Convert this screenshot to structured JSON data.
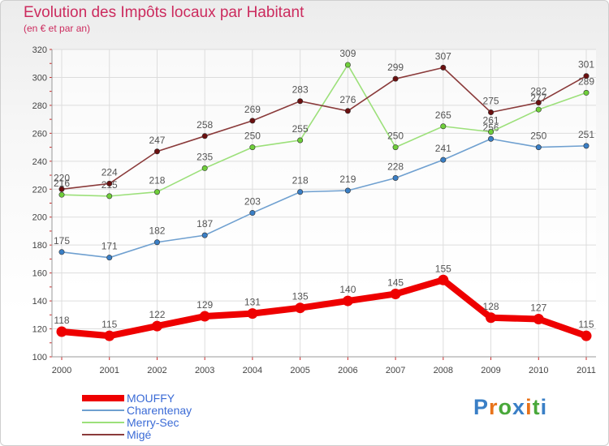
{
  "chart_data": {
    "type": "line",
    "title": "Evolution des Impôts locaux par Habitant",
    "subtitle": "(en € et par an)",
    "categories": [
      "2000",
      "2001",
      "2002",
      "2003",
      "2004",
      "2005",
      "2006",
      "2007",
      "2008",
      "2009",
      "2010",
      "2011"
    ],
    "ylim": [
      100,
      320
    ],
    "yticks": [
      100,
      120,
      140,
      160,
      180,
      200,
      220,
      240,
      260,
      280,
      300,
      320
    ],
    "grid": true,
    "legend_position": "bottom-left",
    "series": [
      {
        "name": "MOUFFY",
        "color": "#ee0000",
        "marker": "#ee0000",
        "values": [
          118,
          115,
          122,
          129,
          131,
          135,
          140,
          145,
          155,
          128,
          127,
          115
        ]
      },
      {
        "name": "Charentenay",
        "color": "#6fa0d0",
        "marker": "#3a7fc6",
        "values": [
          175,
          171,
          182,
          187,
          203,
          218,
          219,
          228,
          241,
          256,
          250,
          251
        ]
      },
      {
        "name": "Merry-Sec",
        "color": "#9ce07a",
        "marker": "#6fcf3a",
        "values": [
          216,
          215,
          218,
          235,
          250,
          255,
          309,
          250,
          265,
          261,
          277,
          289
        ]
      },
      {
        "name": "Migé",
        "color": "#8a3a3a",
        "marker": "#6b1010",
        "values": [
          220,
          224,
          247,
          258,
          269,
          283,
          276,
          299,
          307,
          275,
          282,
          301
        ]
      }
    ],
    "labels": {
      "MOUFFY": [
        "118",
        "115",
        "122",
        "129",
        "131",
        "135",
        "140",
        "145",
        "155",
        "128",
        "127",
        "115"
      ],
      "Charentenay": [
        "175",
        "171",
        "182",
        "187",
        "203",
        "218",
        "219",
        "228",
        "241",
        "256",
        "250",
        "251"
      ],
      "Merry-Sec": [
        "216",
        "215",
        "218",
        "235",
        "250",
        "255",
        "309",
        "250",
        "265",
        "261",
        "277",
        "289"
      ],
      "Migé": [
        "220",
        "224",
        "247",
        "258",
        "269",
        "283",
        "276",
        "299",
        "307",
        "275",
        "282",
        "301"
      ]
    }
  },
  "logo": {
    "text": "Proxiti",
    "colors": [
      "#3a7fc6",
      "#e8731a",
      "#49a83a",
      "#3a7fc6",
      "#e8731a",
      "#49a83a",
      "#3a7fc6"
    ]
  }
}
